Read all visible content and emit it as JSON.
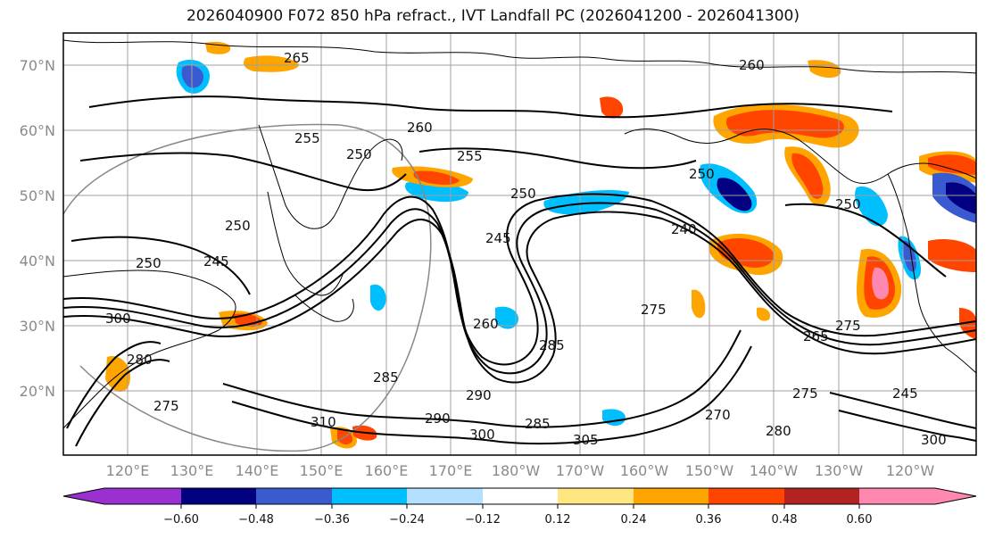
{
  "title": "2026040900 F072 850 hPa refract., IVT Landfall PC (2026041200 - 2026041300)",
  "lat_labels": [
    "70°N",
    "60°N",
    "50°N",
    "40°N",
    "30°N",
    "20°N"
  ],
  "lon_labels": [
    "120°E",
    "130°E",
    "140°E",
    "150°E",
    "160°E",
    "170°E",
    "180°W",
    "170°W",
    "160°W",
    "150°W",
    "140°W",
    "130°W",
    "120°W"
  ],
  "colorbar": {
    "colors": [
      "#9b30d0",
      "#000080",
      "#3a5bd0",
      "#00bfff",
      "#b3e0ff",
      "#ffffff",
      "#ffe680",
      "#ffa500",
      "#ff4500",
      "#b22222",
      "#ff88b0"
    ],
    "ticks": [
      "−0.60",
      "−0.48",
      "−0.36",
      "−0.24",
      "−0.12",
      "0.12",
      "0.24",
      "0.36",
      "0.48",
      "0.60"
    ]
  },
  "contour_labels": [
    "265",
    "260",
    "255",
    "250",
    "245",
    "250",
    "255",
    "260",
    "250",
    "245",
    "250",
    "240",
    "250",
    "275",
    "265",
    "275",
    "300",
    "280",
    "275",
    "290",
    "285",
    "260",
    "290",
    "300",
    "305",
    "285",
    "310",
    "285",
    "245",
    "300",
    "250",
    "280",
    "275",
    "270"
  ],
  "colors": {
    "coast": "#000000",
    "grid": "#a0a0a0",
    "contour": "#000000"
  }
}
